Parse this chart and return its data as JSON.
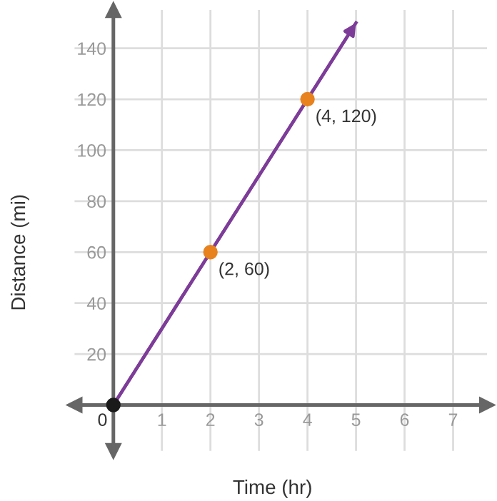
{
  "chart_data": {
    "type": "scatter",
    "xlabel": "Time (hr)",
    "ylabel": "Distance (mi)",
    "series": [
      {
        "type": "line",
        "color": "#7d3c98",
        "x": [
          0,
          5
        ],
        "values": [
          0,
          150
        ]
      },
      {
        "color": "#e8821e",
        "x": [
          2,
          4
        ],
        "values": [
          60,
          120
        ],
        "marker": "circle"
      },
      {
        "color": "#1a1a1a",
        "x": [
          0
        ],
        "values": [
          0
        ],
        "marker": "circle"
      }
    ],
    "annotations": [
      {
        "text": "(2, 60)",
        "x": 2,
        "y": 60
      },
      {
        "text": "(4, 120)",
        "x": 4,
        "y": 120
      }
    ],
    "xlim": [
      -0.8,
      7.7
    ],
    "ylim": [
      -18,
      155
    ],
    "xticks": [
      {
        "value": 0,
        "label": "0"
      },
      1,
      2,
      3,
      4,
      5,
      6,
      7
    ],
    "yticks": [
      20,
      40,
      60,
      80,
      100,
      120,
      140
    ],
    "grid": true
  }
}
